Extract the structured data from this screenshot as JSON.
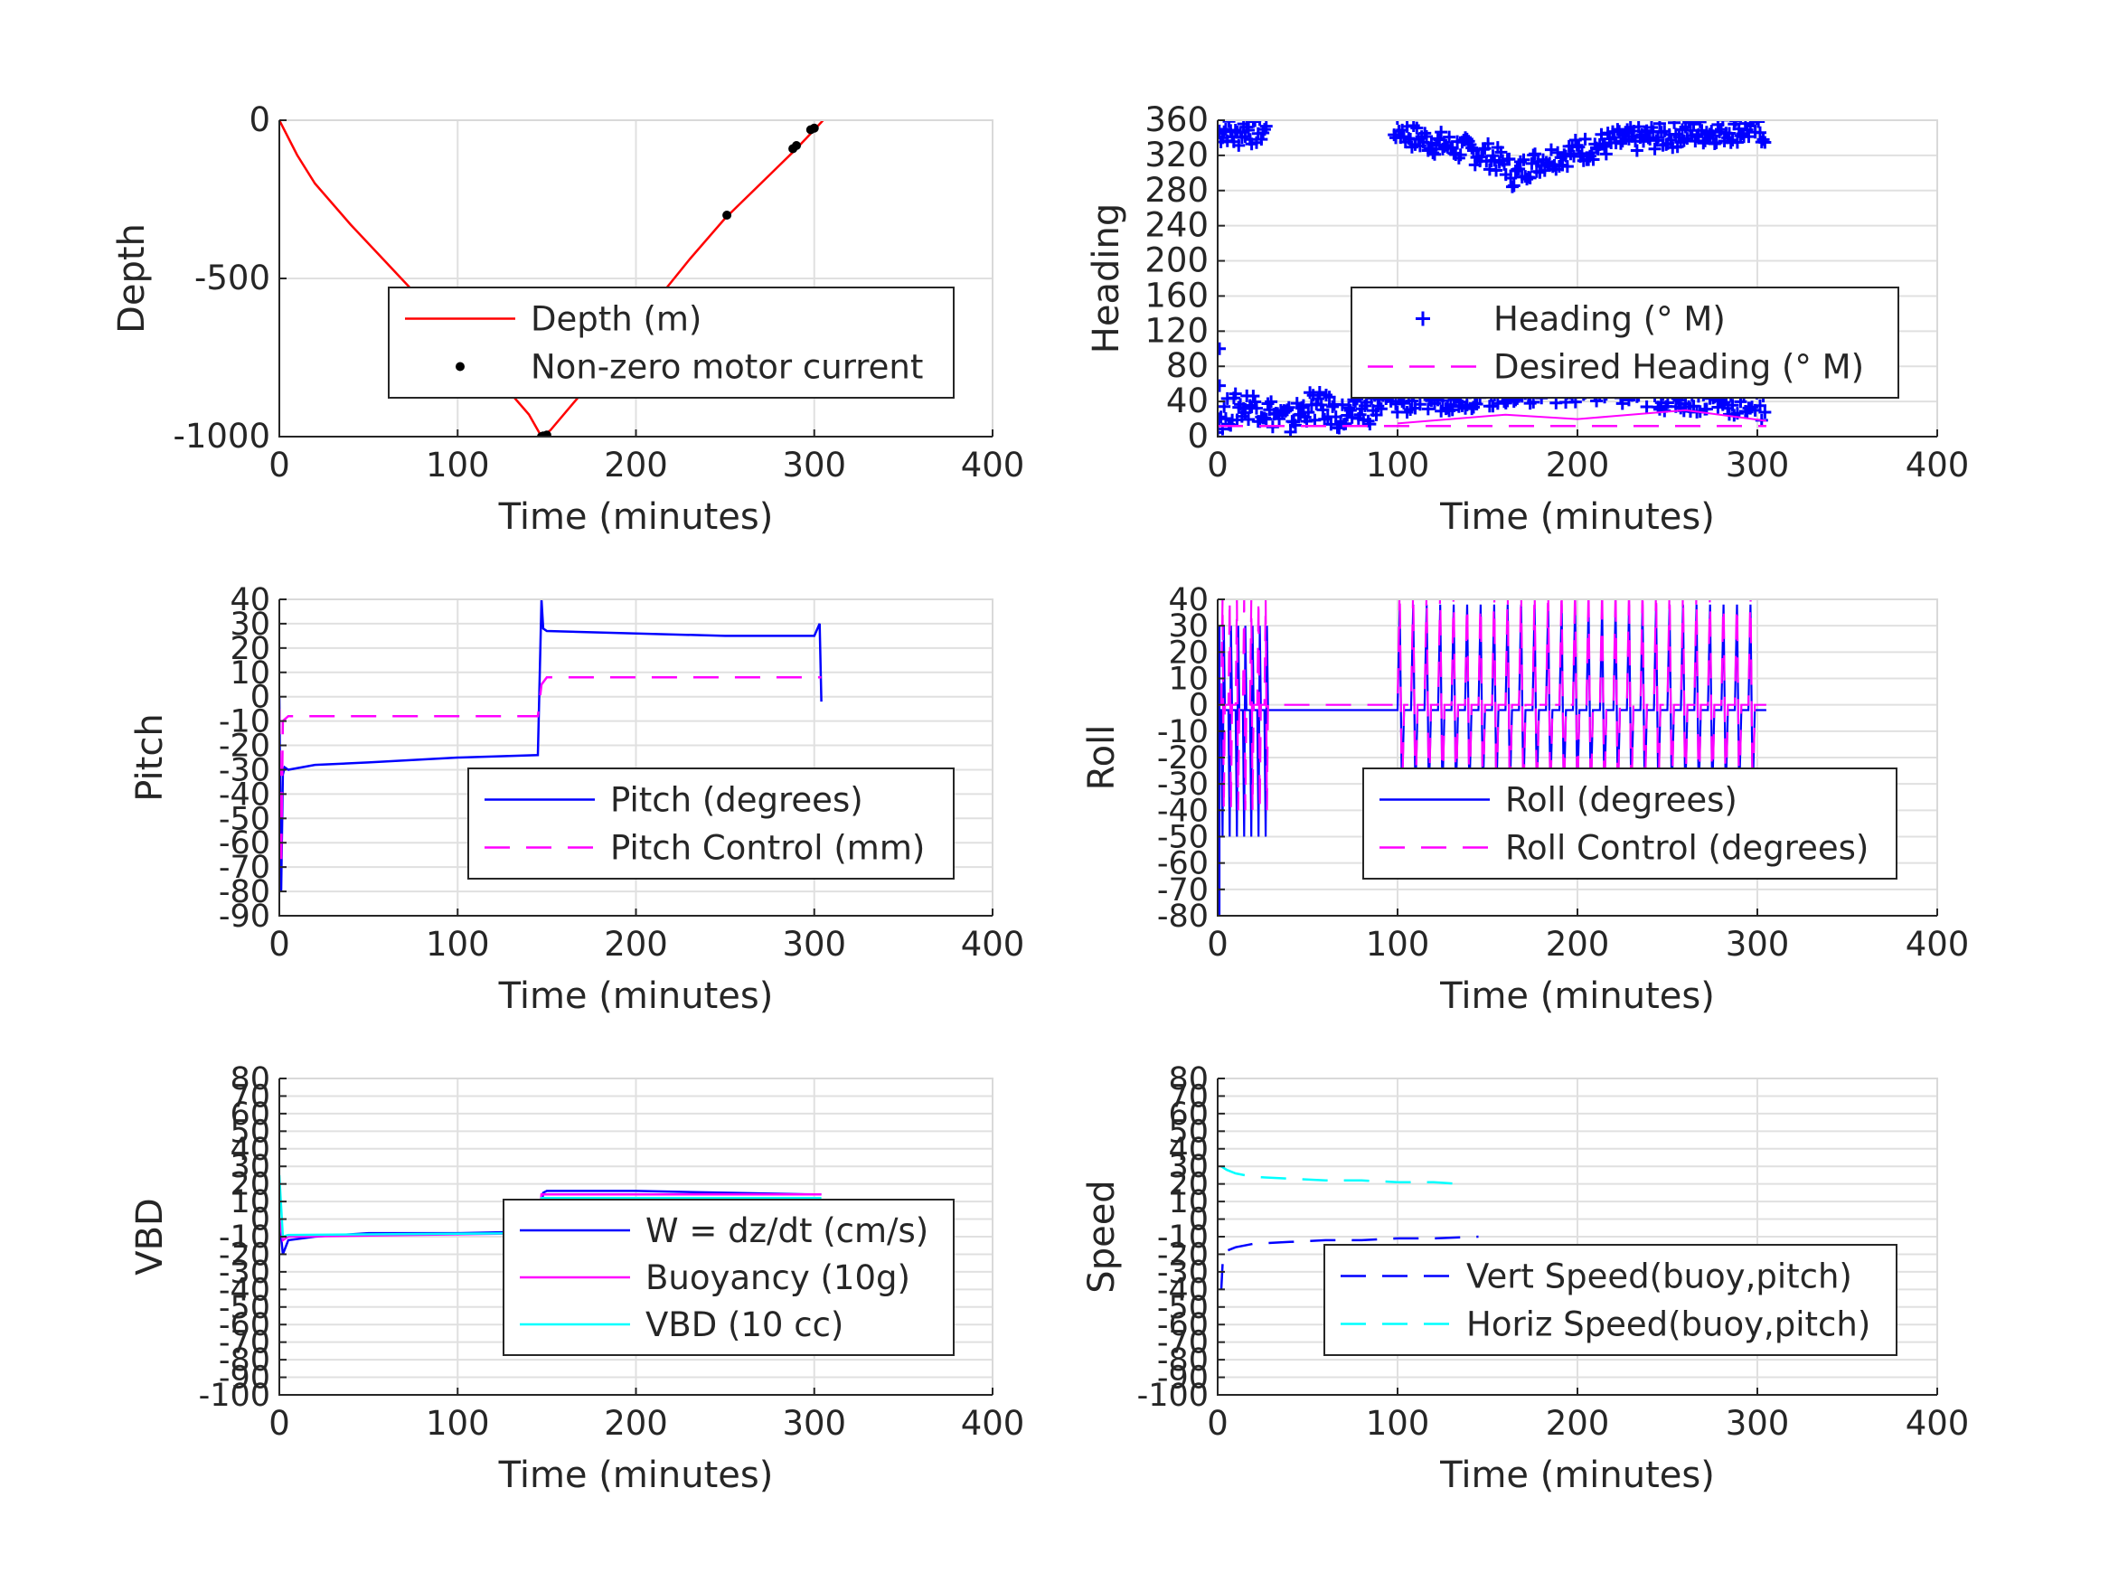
{
  "chart_data": [
    {
      "type": "line",
      "ylabel": "Depth",
      "xlabel": "Time (minutes)",
      "xlim": [
        0,
        400
      ],
      "ylim": [
        -1000,
        0
      ],
      "xticks": [
        0,
        100,
        200,
        300,
        400
      ],
      "xtick_labels": [
        "0",
        "100",
        "200",
        "300",
        "400"
      ],
      "yticks": [
        0,
        -500,
        -1000
      ],
      "ytick_labels": [
        "0",
        "-500",
        "-1000"
      ],
      "grid": true,
      "legend_position": "center-right",
      "series": [
        {
          "name": "Depth (m)",
          "style": "solid",
          "color": "#ff0000",
          "x": [
            0,
            10,
            20,
            40,
            60,
            80,
            100,
            120,
            140,
            147,
            152,
            170,
            190,
            210,
            230,
            250,
            270,
            290,
            300,
            305
          ],
          "y": [
            0,
            -110,
            -200,
            -330,
            -450,
            -570,
            -680,
            -800,
            -930,
            -1000,
            -980,
            -860,
            -720,
            -580,
            -440,
            -310,
            -200,
            -90,
            -30,
            0
          ]
        },
        {
          "name": "Non-zero motor current",
          "style": "dot",
          "color": "#000000",
          "x": [
            147,
            148,
            150,
            251,
            288,
            290,
            298,
            300
          ],
          "y": [
            -1000,
            -998,
            -995,
            -300,
            -90,
            -80,
            -30,
            -25
          ]
        }
      ]
    },
    {
      "type": "scatter",
      "ylabel": "Heading",
      "xlabel": "Time (minutes)",
      "xlim": [
        0,
        400
      ],
      "ylim": [
        0,
        360
      ],
      "xticks": [
        0,
        100,
        200,
        300,
        400
      ],
      "xtick_labels": [
        "0",
        "100",
        "200",
        "300",
        "400"
      ],
      "yticks": [
        0,
        40,
        80,
        120,
        160,
        200,
        240,
        280,
        320,
        360
      ],
      "ytick_labels": [
        "0",
        "40",
        "80",
        "120",
        "160",
        "200",
        "240",
        "280",
        "320",
        "360"
      ],
      "grid": true,
      "legend_position": "center-right",
      "series": [
        {
          "name": "Heading (° M)",
          "style": "plus",
          "color": "#0000ff",
          "upper_band": {
            "x": [
              0,
              5,
              10,
              15,
              20,
              25,
              100,
              110,
              120,
              130,
              140,
              150,
              160,
              165,
              170,
              180,
              190,
              200,
              220,
              240,
              260,
              280,
              300,
              305
            ],
            "y": [
              345,
              350,
              340,
              352,
              345,
              348,
              350,
              340,
              335,
              330,
              325,
              320,
              310,
              295,
              305,
              315,
              320,
              325,
              335,
              340,
              345,
              348,
              350,
              345
            ]
          },
          "lower_band": {
            "x": [
              0,
              10,
              20,
              30,
              40,
              50,
              60,
              70,
              80,
              90,
              100,
              120,
              140,
              160,
              180,
              200,
              220,
              240,
              260,
              280,
              300,
              305
            ],
            "y": [
              15,
              25,
              30,
              20,
              10,
              28,
              25,
              15,
              20,
              30,
              35,
              38,
              42,
              45,
              48,
              50,
              45,
              40,
              38,
              35,
              30,
              25
            ]
          }
        },
        {
          "name": "Desired Heading (° M)",
          "style": "dashed",
          "color": "#ff00ff",
          "x": [
            0,
            100,
            150,
            200,
            250,
            305
          ],
          "y": [
            12,
            12,
            12,
            12,
            12,
            12
          ]
        }
      ]
    },
    {
      "type": "line",
      "ylabel": "Pitch",
      "xlabel": "Time (minutes)",
      "xlim": [
        0,
        400
      ],
      "ylim": [
        -90,
        40
      ],
      "xticks": [
        0,
        100,
        200,
        300,
        400
      ],
      "xtick_labels": [
        "0",
        "100",
        "200",
        "300",
        "400"
      ],
      "yticks": [
        40,
        30,
        20,
        10,
        0,
        -10,
        -20,
        -30,
        -40,
        -50,
        -60,
        -70,
        -80,
        -90
      ],
      "ytick_labels": [
        "40",
        "30",
        "20",
        "10",
        "0",
        "-10",
        "-20",
        "-30",
        "-40",
        "-50",
        "-60",
        "-70",
        "-80",
        "-90"
      ],
      "grid": true,
      "legend_position": "center-right",
      "series": [
        {
          "name": "Pitch (degrees)",
          "style": "solid",
          "color": "#0000ff",
          "x": [
            0,
            1,
            2,
            3,
            5,
            20,
            50,
            100,
            145,
            147,
            148,
            150,
            200,
            250,
            300,
            303,
            304
          ],
          "y": [
            0,
            -80,
            -32,
            -29,
            -30,
            -28,
            -27,
            -25,
            -24,
            40,
            28,
            27,
            26,
            25,
            25,
            30,
            -2
          ]
        },
        {
          "name": "Pitch Control (mm)",
          "style": "dashed",
          "color": "#ff00ff",
          "x": [
            0,
            1,
            2,
            5,
            100,
            145,
            147,
            150,
            200,
            250,
            300,
            304
          ],
          "y": [
            -5,
            -70,
            -10,
            -8,
            -8,
            -8,
            5,
            8,
            8,
            8,
            8,
            8
          ]
        }
      ]
    },
    {
      "type": "line",
      "ylabel": "Roll",
      "xlabel": "Time (minutes)",
      "xlim": [
        0,
        400
      ],
      "ylim": [
        -80,
        40
      ],
      "xticks": [
        0,
        100,
        200,
        300,
        400
      ],
      "xtick_labels": [
        "0",
        "100",
        "200",
        "300",
        "400"
      ],
      "yticks": [
        40,
        30,
        20,
        10,
        0,
        -10,
        -20,
        -30,
        -40,
        -50,
        -60,
        -70,
        -80
      ],
      "ytick_labels": [
        "40",
        "30",
        "20",
        "10",
        "0",
        "-10",
        "-20",
        "-30",
        "-40",
        "-50",
        "-60",
        "-70",
        "-80"
      ],
      "grid": true,
      "legend_position": "center-right",
      "series": [
        {
          "name": "Roll (degrees)",
          "style": "solid",
          "color": "#0000ff",
          "baseline": -2,
          "spike_amplitude": 40,
          "x_range": [
            0,
            305
          ]
        },
        {
          "name": "Roll Control (degrees)",
          "style": "dashed",
          "color": "#ff00ff",
          "baseline": 0,
          "spike_amplitude": 40,
          "x_range": [
            0,
            305
          ]
        }
      ]
    },
    {
      "type": "line",
      "ylabel": "VBD",
      "xlabel": "Time (minutes)",
      "xlim": [
        0,
        400
      ],
      "ylim": [
        -100,
        80
      ],
      "xticks": [
        0,
        100,
        200,
        300,
        400
      ],
      "xtick_labels": [
        "0",
        "100",
        "200",
        "300",
        "400"
      ],
      "yticks": [
        80,
        70,
        60,
        50,
        40,
        30,
        20,
        10,
        0,
        -10,
        -20,
        -30,
        -40,
        -50,
        -60,
        -70,
        -80,
        -90,
        -100
      ],
      "ytick_labels": [
        "80",
        "70",
        "60",
        "50",
        "40",
        "30",
        "20",
        "10",
        "0",
        "-10",
        "-20",
        "-30",
        "-40",
        "-50",
        "-60",
        "-70",
        "-80",
        "-90",
        "-100"
      ],
      "grid": true,
      "legend_position": "center-right",
      "series": [
        {
          "name": "W = dz/dt (cm/s)",
          "style": "solid",
          "color": "#0000ff",
          "x": [
            0,
            2,
            5,
            20,
            50,
            100,
            145,
            148,
            150,
            200,
            250,
            300,
            304
          ],
          "y": [
            0,
            -20,
            -12,
            -10,
            -8,
            -8,
            -7,
            15,
            16,
            16,
            15,
            14,
            14
          ]
        },
        {
          "name": "Buoyancy (10g)",
          "style": "solid",
          "color": "#ff00ff",
          "x": [
            0,
            2,
            5,
            145,
            147,
            150,
            300,
            304
          ],
          "y": [
            0,
            -12,
            -10,
            -8,
            14,
            14,
            14,
            14
          ]
        },
        {
          "name": "VBD (10 cc)",
          "style": "solid",
          "color": "#00ffff",
          "x": [
            0,
            2,
            5,
            145,
            147,
            150,
            300,
            304
          ],
          "y": [
            25,
            -10,
            -9,
            -8,
            12,
            12,
            12,
            12
          ]
        }
      ]
    },
    {
      "type": "line",
      "ylabel": "Speed",
      "xlabel": "Time (minutes)",
      "xlim": [
        0,
        400
      ],
      "ylim": [
        -100,
        80
      ],
      "xticks": [
        0,
        100,
        200,
        300,
        400
      ],
      "xtick_labels": [
        "0",
        "100",
        "200",
        "300",
        "400"
      ],
      "yticks": [
        80,
        70,
        60,
        50,
        40,
        30,
        20,
        10,
        0,
        -10,
        -20,
        -30,
        -40,
        -50,
        -60,
        -70,
        -80,
        -90,
        -100
      ],
      "ytick_labels": [
        "80",
        "70",
        "60",
        "50",
        "40",
        "30",
        "20",
        "10",
        "0",
        "-10",
        "-20",
        "-30",
        "-40",
        "-50",
        "-60",
        "-70",
        "-80",
        "-90",
        "-100"
      ],
      "grid": true,
      "legend_position": "center-right",
      "series": [
        {
          "name": "Vert Speed(buoy,pitch)",
          "style": "dashed",
          "color": "#0000ff",
          "x": [
            2,
            3,
            5,
            10,
            20,
            40,
            60,
            80,
            100,
            120,
            145
          ],
          "y": [
            -40,
            -20,
            -18,
            -16,
            -14,
            -13,
            -12,
            -12,
            -11,
            -11,
            -10
          ]
        },
        {
          "name": "Horiz Speed(buoy,pitch)",
          "style": "dashed",
          "color": "#00ffff",
          "x": [
            2,
            5,
            10,
            20,
            40,
            60,
            80,
            100,
            120,
            135
          ],
          "y": [
            30,
            28,
            26,
            24,
            23,
            22,
            22,
            21,
            21,
            20
          ]
        }
      ]
    }
  ]
}
